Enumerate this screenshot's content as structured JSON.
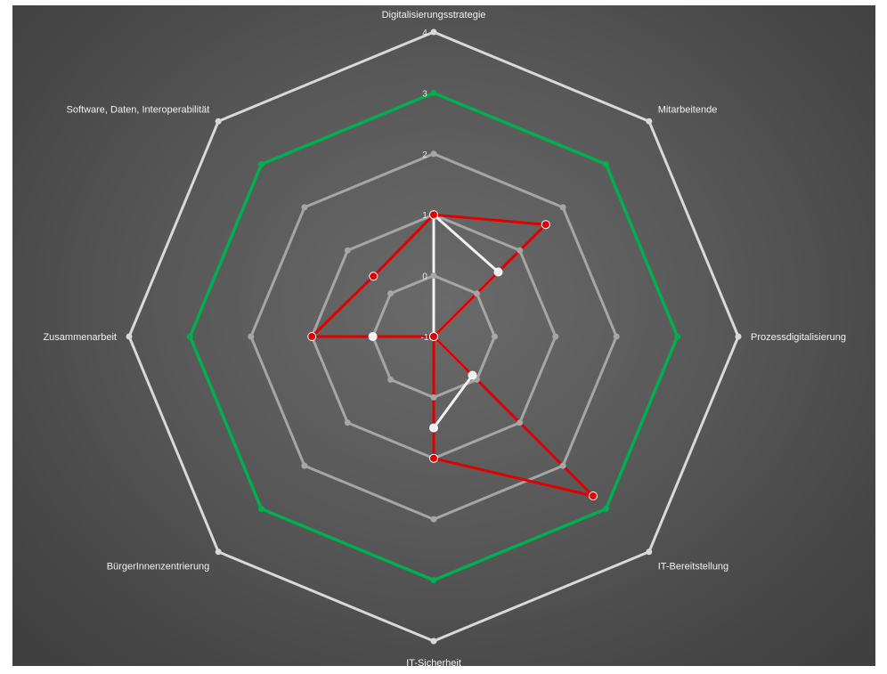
{
  "chart_data": {
    "type": "radar",
    "categories": [
      "Digitalisierungsstrategie",
      "Mitarbeitende",
      "Prozessdigitalisierung",
      "IT-Bereitstellung",
      "IT-Sicherheit",
      "BürgerInnenzentrierung",
      "Zusammenarbeit",
      "Software, Daten, Interoperabilität"
    ],
    "rlim": [
      -1,
      4
    ],
    "ticks": [
      "-1",
      "0",
      "1",
      "2",
      "3",
      "4"
    ],
    "series": [
      {
        "color": "#d9d9d9",
        "values": [
          4,
          4,
          4,
          4,
          4,
          4,
          4,
          4
        ]
      },
      {
        "color": "#00b050",
        "values": [
          3,
          3,
          3,
          3,
          3,
          3,
          3,
          3
        ]
      },
      {
        "color": "#a6a6a6",
        "values": [
          2,
          2,
          2,
          2,
          2,
          2,
          2,
          2
        ]
      },
      {
        "color": "#a6a6a6",
        "values": [
          1,
          1,
          1,
          1,
          1,
          1,
          1,
          1
        ]
      },
      {
        "color": "#a6a6a6",
        "values": [
          0,
          0,
          0,
          0,
          0,
          0,
          0,
          0
        ]
      },
      {
        "color": "#f2f2f2",
        "values": [
          1,
          0.5,
          -1,
          -0.1,
          0.5,
          -1,
          0,
          -1
        ]
      },
      {
        "color": "#e00000",
        "values": [
          1,
          1.6,
          -1,
          2.7,
          1,
          -1,
          1,
          0.4
        ]
      }
    ],
    "grid": false,
    "legend": "none"
  }
}
